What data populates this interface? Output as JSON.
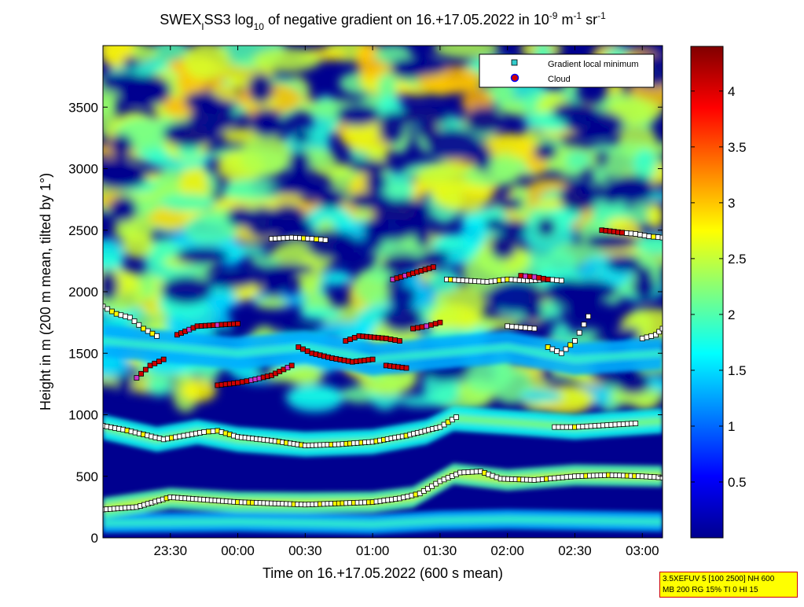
{
  "chart_data": {
    "type": "heatmap",
    "title_parts": {
      "a": "SWEX",
      "a_sub": "I",
      "b": "SS3 log",
      "b_sub": "10",
      "c": " of negative gradient on 16.+17.05.2022 in 10",
      "c_sup": "-9",
      "d": " m",
      "d_sup": "-1",
      "e": " sr",
      "e_sup": "-1"
    },
    "xlabel": "Time on 16.+17.05.2022 (600 s mean)",
    "ylabel": "Height in m (200 m mean, tilted by 1°)",
    "xlim_hours": [
      23.0,
      27.15
    ],
    "ylim": [
      0,
      4000
    ],
    "x_ticks": [
      {
        "value": 23.5,
        "label": "23:30"
      },
      {
        "value": 24.0,
        "label": "00:00"
      },
      {
        "value": 24.5,
        "label": "00:30"
      },
      {
        "value": 25.0,
        "label": "01:00"
      },
      {
        "value": 25.5,
        "label": "01:30"
      },
      {
        "value": 26.0,
        "label": "02:00"
      },
      {
        "value": 26.5,
        "label": "02:30"
      },
      {
        "value": 27.0,
        "label": "03:00"
      }
    ],
    "y_ticks": [
      {
        "value": 0,
        "label": "0"
      },
      {
        "value": 500,
        "label": "500"
      },
      {
        "value": 1000,
        "label": "1000"
      },
      {
        "value": 1500,
        "label": "1500"
      },
      {
        "value": 2000,
        "label": "2000"
      },
      {
        "value": 2500,
        "label": "2500"
      },
      {
        "value": 3000,
        "label": "3000"
      },
      {
        "value": 3500,
        "label": "3500"
      }
    ],
    "colorbar": {
      "range": [
        0,
        4.4
      ],
      "colormap": "jet",
      "ticks": [
        {
          "value": 0.5,
          "label": "0.5"
        },
        {
          "value": 1.0,
          "label": "1"
        },
        {
          "value": 1.5,
          "label": "1.5"
        },
        {
          "value": 2.0,
          "label": "2"
        },
        {
          "value": 2.5,
          "label": "2.5"
        },
        {
          "value": 3.0,
          "label": "3"
        },
        {
          "value": 3.5,
          "label": "3.5"
        },
        {
          "value": 4.0,
          "label": "4"
        }
      ]
    },
    "layers": [
      {
        "name": "surface",
        "value": 1.3,
        "path": [
          [
            23.0,
            120
          ],
          [
            24.0,
            130
          ],
          [
            25.0,
            110
          ],
          [
            25.5,
            140
          ],
          [
            26.0,
            150
          ],
          [
            27.15,
            130
          ]
        ],
        "thickness": 160
      },
      {
        "name": "lower_layer",
        "value": 2.0,
        "path": [
          [
            23.0,
            240
          ],
          [
            23.5,
            320
          ],
          [
            24.0,
            290
          ],
          [
            24.5,
            285
          ],
          [
            25.0,
            290
          ],
          [
            25.3,
            330
          ],
          [
            25.6,
            520
          ],
          [
            26.0,
            470
          ],
          [
            26.5,
            510
          ],
          [
            27.15,
            500
          ]
        ],
        "thickness": 170
      },
      {
        "name": "mid_layer",
        "value": 1.7,
        "path": [
          [
            23.0,
            900
          ],
          [
            23.4,
            800
          ],
          [
            23.7,
            860
          ],
          [
            24.0,
            800
          ],
          [
            24.5,
            760
          ],
          [
            25.0,
            780
          ],
          [
            25.4,
            860
          ],
          [
            25.6,
            970
          ],
          [
            26.0,
            940
          ],
          [
            26.5,
            900
          ],
          [
            27.15,
            950
          ]
        ],
        "thickness": 200
      },
      {
        "name": "upper_layer",
        "value": 1.3,
        "path": [
          [
            23.0,
            1600
          ],
          [
            23.5,
            1550
          ],
          [
            24.0,
            1500
          ],
          [
            24.5,
            1550
          ],
          [
            25.0,
            1450
          ],
          [
            25.5,
            1500
          ],
          [
            26.0,
            1550
          ],
          [
            26.5,
            1450
          ],
          [
            27.15,
            1500
          ]
        ],
        "thickness": 260
      }
    ],
    "series": [
      {
        "name": "Gradient local minimum",
        "marker": "square",
        "color": "#ffffff",
        "tracks": [
          [
            [
              23.0,
              230
            ],
            [
              23.25,
              250
            ],
            [
              23.5,
              330
            ],
            [
              23.75,
              310
            ],
            [
              24.0,
              290
            ],
            [
              24.25,
              280
            ],
            [
              24.5,
              270
            ],
            [
              24.75,
              280
            ],
            [
              25.0,
              290
            ],
            [
              25.2,
              320
            ],
            [
              25.35,
              360
            ],
            [
              25.5,
              460
            ],
            [
              25.65,
              530
            ],
            [
              25.8,
              540
            ],
            [
              25.95,
              480
            ],
            [
              26.2,
              470
            ],
            [
              26.5,
              500
            ],
            [
              26.75,
              510
            ],
            [
              27.0,
              500
            ],
            [
              27.15,
              490
            ]
          ],
          [
            [
              23.0,
              910
            ],
            [
              23.15,
              880
            ],
            [
              23.3,
              840
            ],
            [
              23.45,
              800
            ],
            [
              23.6,
              830
            ],
            [
              23.75,
              860
            ],
            [
              23.85,
              870
            ],
            [
              24.0,
              820
            ],
            [
              24.25,
              790
            ],
            [
              24.5,
              750
            ],
            [
              24.75,
              760
            ],
            [
              25.0,
              780
            ],
            [
              25.25,
              830
            ],
            [
              25.5,
              900
            ],
            [
              25.62,
              980
            ]
          ],
          [
            [
              26.35,
              900
            ],
            [
              26.5,
              900
            ],
            [
              26.65,
              910
            ],
            [
              26.8,
              920
            ],
            [
              26.95,
              930
            ]
          ],
          [
            [
              23.0,
              1880
            ],
            [
              23.1,
              1820
            ],
            [
              23.2,
              1790
            ],
            [
              23.3,
              1700
            ],
            [
              23.4,
              1640
            ]
          ],
          [
            [
              24.25,
              2430
            ],
            [
              24.4,
              2440
            ],
            [
              24.55,
              2430
            ],
            [
              24.65,
              2420
            ]
          ],
          [
            [
              25.55,
              2100
            ],
            [
              25.7,
              2090
            ],
            [
              25.85,
              2080
            ],
            [
              26.0,
              2100
            ],
            [
              26.15,
              2090
            ],
            [
              26.3,
              2100
            ],
            [
              26.4,
              2090
            ]
          ],
          [
            [
              26.0,
              1720
            ],
            [
              26.1,
              1710
            ],
            [
              26.2,
              1700
            ]
          ],
          [
            [
              26.3,
              1550
            ],
            [
              26.4,
              1500
            ],
            [
              26.5,
              1600
            ],
            [
              26.6,
              1800
            ]
          ],
          [
            [
              26.85,
              2480
            ],
            [
              26.95,
              2470
            ],
            [
              27.05,
              2450
            ],
            [
              27.15,
              2440
            ]
          ],
          [
            [
              27.0,
              1620
            ],
            [
              27.1,
              1650
            ],
            [
              27.15,
              1700
            ]
          ]
        ]
      },
      {
        "name": "Cloud",
        "marker": "circle",
        "color": "#d00000",
        "tracks": [
          [
            [
              23.25,
              1300
            ],
            [
              23.35,
              1400
            ],
            [
              23.45,
              1450
            ]
          ],
          [
            [
              23.55,
              1650
            ],
            [
              23.7,
              1720
            ],
            [
              23.85,
              1730
            ],
            [
              24.0,
              1740
            ]
          ],
          [
            [
              23.85,
              1240
            ],
            [
              24.0,
              1260
            ],
            [
              24.1,
              1280
            ],
            [
              24.25,
              1320
            ],
            [
              24.4,
              1400
            ]
          ],
          [
            [
              24.45,
              1550
            ],
            [
              24.55,
              1500
            ],
            [
              24.7,
              1460
            ],
            [
              24.85,
              1430
            ],
            [
              25.0,
              1450
            ]
          ],
          [
            [
              24.8,
              1600
            ],
            [
              24.9,
              1640
            ],
            [
              25.1,
              1620
            ],
            [
              25.2,
              1600
            ]
          ],
          [
            [
              25.1,
              1400
            ],
            [
              25.25,
              1380
            ]
          ],
          [
            [
              25.3,
              1700
            ],
            [
              25.4,
              1720
            ],
            [
              25.5,
              1750
            ]
          ],
          [
            [
              25.15,
              2100
            ],
            [
              25.3,
              2150
            ],
            [
              25.45,
              2200
            ]
          ],
          [
            [
              26.1,
              2130
            ],
            [
              26.2,
              2120
            ],
            [
              26.3,
              2100
            ]
          ],
          [
            [
              26.7,
              2500
            ],
            [
              26.85,
              2480
            ]
          ]
        ]
      }
    ],
    "legend": {
      "position": "top-right",
      "entries": [
        "Gradient local minimum",
        "Cloud"
      ]
    }
  },
  "info_box": {
    "line1": "3.5XEFUV 5 [100 2500] NH 600",
    "line2": "MB 200 RG 15% TI 0 HI 15"
  }
}
